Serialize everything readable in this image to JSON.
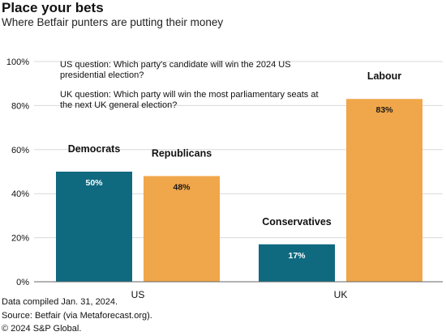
{
  "header": {
    "title": "Place your bets",
    "subtitle": "Where Betfair punters are putting their money"
  },
  "notes": [
    "US question: Which party's candidate will win the 2024 US",
    "presidential election?",
    "UK question: Which party will win the most parliamentary seats at",
    "the next UK general election?"
  ],
  "footer": {
    "compiled": "Data compiled Jan. 31, 2024.",
    "source": "Source: Betfair (via Metaforecast.org).",
    "copyright": "© 2024 S&P Global."
  },
  "colors": {
    "teal": "#0f6a80",
    "orange": "#f0a64a",
    "grid": "#d9d9d9"
  },
  "chart_data": {
    "type": "bar",
    "title": "Place your bets",
    "subtitle": "Where Betfair punters are putting their money",
    "ylim": [
      0,
      100
    ],
    "yticks": [
      "0%",
      "20%",
      "40%",
      "60%",
      "80%",
      "100%"
    ],
    "grid": true,
    "groups": [
      {
        "label": "US",
        "bars": [
          {
            "name": "Democrats",
            "value": 50,
            "label": "50%",
            "color": "#0f6a80"
          },
          {
            "name": "Republicans",
            "value": 48,
            "label": "48%",
            "color": "#f0a64a"
          }
        ]
      },
      {
        "label": "UK",
        "bars": [
          {
            "name": "Conservatives",
            "value": 17,
            "label": "17%",
            "color": "#0f6a80"
          },
          {
            "name": "Labour",
            "value": 83,
            "label": "83%",
            "color": "#f0a64a"
          }
        ]
      }
    ]
  }
}
